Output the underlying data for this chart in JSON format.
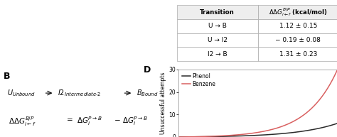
{
  "table_col1": [
    "U → B",
    "U → I2",
    "I2 → B"
  ],
  "table_col2": [
    "1.12 ± 0.15",
    "− 0.19 ± 0.08",
    "1.31 ± 0.23"
  ],
  "phenol_color": "#2a2a2a",
  "benzene_color": "#d96060",
  "ylim": [
    0,
    30
  ],
  "xlim": [
    0,
    1
  ],
  "ylabel": "Unsuccessful attempts",
  "legend_phenol": "Phenol",
  "legend_benzene": "Benzene",
  "background_color": "#ffffff",
  "top_bg": "#e8e8f0"
}
